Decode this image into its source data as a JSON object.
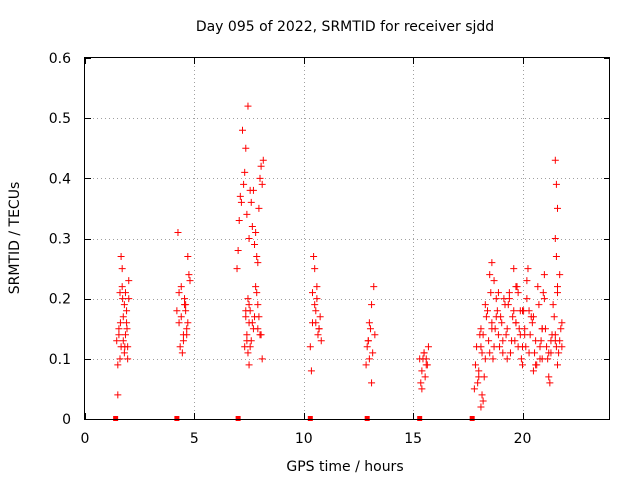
{
  "chart_data": {
    "type": "scatter",
    "title": "Day 095 of 2022, SRMTID for receiver sjdd",
    "xlabel": "GPS time / hours",
    "ylabel": "SRMTID / TECUs",
    "xlim": [
      0,
      24
    ],
    "ylim": [
      0,
      0.6
    ],
    "xticks": [
      0,
      5,
      10,
      15,
      20
    ],
    "xtick_labels": [
      "0",
      "5",
      "10",
      "15",
      "20"
    ],
    "yticks": [
      0,
      0.1,
      0.2,
      0.3,
      0.4,
      0.5,
      0.6
    ],
    "ytick_labels": [
      "0",
      "0.1",
      "0.2",
      "0.3",
      "0.4",
      "0.5",
      "0.6"
    ],
    "grid": true,
    "marker": "plus",
    "color": "#ff0000",
    "zero_markers_x": [
      1.4,
      4.2,
      7.0,
      10.3,
      12.9,
      15.3,
      17.7
    ],
    "series": [
      {
        "name": "SRMTID",
        "x": [
          1.45,
          1.5,
          1.55,
          1.6,
          1.65,
          1.7,
          1.75,
          1.8,
          1.85,
          1.9,
          1.95,
          2.0,
          1.5,
          1.6,
          1.7,
          1.8,
          1.9,
          2.0,
          1.55,
          1.65,
          1.75,
          1.85,
          1.95,
          1.62,
          1.72,
          1.82,
          1.92,
          4.2,
          4.3,
          4.4,
          4.5,
          4.6,
          4.7,
          4.8,
          4.35,
          4.45,
          4.55,
          4.65,
          4.75,
          4.25,
          4.5,
          4.7,
          4.6,
          4.4,
          4.3,
          4.55,
          4.65,
          6.95,
          7.05,
          7.15,
          7.25,
          7.35,
          7.45,
          7.55,
          7.65,
          7.75,
          7.85,
          7.95,
          8.05,
          8.15,
          7.0,
          7.1,
          7.2,
          7.3,
          7.4,
          7.5,
          7.6,
          7.7,
          7.8,
          7.9,
          8.0,
          8.1,
          7.35,
          7.4,
          7.45,
          7.5,
          7.3,
          7.55,
          7.7,
          7.8,
          7.6,
          7.9,
          7.95,
          8.0,
          7.45,
          7.5,
          7.65,
          7.85,
          7.9,
          7.35,
          7.4,
          7.5,
          7.55,
          7.75,
          8.05,
          8.1,
          10.3,
          10.4,
          10.5,
          10.6,
          10.7,
          10.8,
          10.45,
          10.55,
          10.65,
          10.35,
          10.5,
          10.6,
          10.75,
          10.4,
          10.55,
          10.7,
          12.85,
          12.95,
          13.05,
          13.15,
          13.25,
          12.9,
          13.0,
          13.1,
          13.2,
          13.0,
          13.1,
          12.95,
          15.3,
          15.4,
          15.5,
          15.6,
          15.7,
          15.35,
          15.45,
          15.55,
          15.65,
          15.5,
          15.4,
          15.6,
          17.8,
          17.9,
          18.0,
          18.1,
          18.2,
          18.3,
          18.4,
          18.5,
          18.6,
          18.7,
          18.8,
          18.9,
          19.0,
          19.1,
          19.2,
          19.3,
          19.4,
          19.5,
          19.6,
          19.7,
          19.8,
          19.9,
          20.0,
          20.1,
          20.2,
          20.3,
          20.4,
          20.5,
          20.6,
          20.7,
          20.8,
          20.9,
          21.0,
          21.1,
          21.2,
          21.3,
          21.4,
          21.5,
          21.6,
          21.7,
          21.8,
          17.85,
          17.95,
          18.05,
          18.15,
          18.25,
          18.35,
          18.45,
          18.55,
          18.65,
          18.75,
          18.85,
          18.95,
          19.05,
          19.15,
          19.25,
          19.35,
          19.45,
          19.55,
          19.65,
          19.75,
          19.85,
          19.95,
          20.05,
          20.15,
          20.25,
          20.35,
          20.45,
          20.55,
          20.65,
          20.75,
          20.85,
          20.95,
          21.05,
          21.15,
          21.25,
          21.35,
          21.45,
          21.55,
          21.65,
          21.75,
          18.1,
          18.3,
          18.6,
          18.9,
          19.3,
          19.6,
          19.9,
          20.2,
          20.5,
          20.8,
          21.0,
          21.3,
          21.6,
          21.7,
          18.0,
          18.2,
          18.5,
          18.8,
          19.1,
          19.4,
          19.7,
          20.0,
          20.3,
          20.6,
          20.9,
          21.2,
          21.5,
          21.8,
          18.6,
          18.7,
          19.8,
          20.0,
          20.1,
          21.5,
          21.55,
          21.6,
          21.5,
          21.55,
          21.6,
          20.9,
          19.7,
          18.1,
          18.15
        ],
        "y": [
          0.13,
          0.09,
          0.15,
          0.21,
          0.12,
          0.22,
          0.17,
          0.19,
          0.14,
          0.16,
          0.12,
          0.2,
          0.04,
          0.1,
          0.25,
          0.11,
          0.18,
          0.23,
          0.14,
          0.27,
          0.13,
          0.21,
          0.1,
          0.16,
          0.2,
          0.12,
          0.15,
          0.18,
          0.21,
          0.17,
          0.14,
          0.19,
          0.16,
          0.23,
          0.12,
          0.11,
          0.2,
          0.15,
          0.24,
          0.31,
          0.13,
          0.27,
          0.18,
          0.22,
          0.16,
          0.19,
          0.14,
          0.25,
          0.33,
          0.36,
          0.39,
          0.45,
          0.52,
          0.38,
          0.32,
          0.29,
          0.27,
          0.35,
          0.42,
          0.43,
          0.28,
          0.37,
          0.48,
          0.41,
          0.34,
          0.3,
          0.36,
          0.38,
          0.31,
          0.26,
          0.4,
          0.39,
          0.17,
          0.14,
          0.2,
          0.16,
          0.12,
          0.18,
          0.15,
          0.22,
          0.13,
          0.19,
          0.17,
          0.14,
          0.11,
          0.09,
          0.16,
          0.21,
          0.15,
          0.18,
          0.13,
          0.19,
          0.12,
          0.17,
          0.14,
          0.1,
          0.12,
          0.16,
          0.19,
          0.22,
          0.15,
          0.13,
          0.27,
          0.18,
          0.14,
          0.08,
          0.25,
          0.2,
          0.17,
          0.21,
          0.16,
          0.15,
          0.09,
          0.13,
          0.15,
          0.11,
          0.14,
          0.12,
          0.16,
          0.19,
          0.22,
          0.1,
          0.06,
          0.13,
          0.1,
          0.08,
          0.11,
          0.09,
          0.12,
          0.06,
          0.1,
          0.07,
          0.09,
          0.11,
          0.05,
          0.1,
          0.05,
          0.12,
          0.08,
          0.15,
          0.03,
          0.1,
          0.18,
          0.24,
          0.16,
          0.12,
          0.2,
          0.14,
          0.17,
          0.11,
          0.19,
          0.15,
          0.21,
          0.13,
          0.25,
          0.16,
          0.12,
          0.18,
          0.09,
          0.14,
          0.2,
          0.11,
          0.17,
          0.08,
          0.13,
          0.22,
          0.1,
          0.15,
          0.24,
          0.12,
          0.07,
          0.11,
          0.19,
          0.14,
          0.09,
          0.13,
          0.16,
          0.09,
          0.06,
          0.14,
          0.11,
          0.07,
          0.17,
          0.13,
          0.21,
          0.1,
          0.15,
          0.18,
          0.12,
          0.16,
          0.2,
          0.14,
          0.19,
          0.11,
          0.17,
          0.13,
          0.22,
          0.15,
          0.1,
          0.18,
          0.12,
          0.25,
          0.14,
          0.16,
          0.11,
          0.09,
          0.19,
          0.13,
          0.21,
          0.15,
          0.1,
          0.06,
          0.14,
          0.17,
          0.12,
          0.11,
          0.15,
          0.12,
          0.19,
          0.15,
          0.21,
          0.1,
          0.18,
          0.14,
          0.23,
          0.17,
          0.12,
          0.2,
          0.13,
          0.21,
          0.24,
          0.07,
          0.14,
          0.11,
          0.17,
          0.13,
          0.2,
          0.16,
          0.12,
          0.18,
          0.09,
          0.15,
          0.11,
          0.13,
          0.12,
          0.26,
          0.23,
          0.21,
          0.18,
          0.15,
          0.43,
          0.39,
          0.35,
          0.3,
          0.27,
          0.22,
          0.1,
          0.22,
          0.02,
          0.04
        ]
      }
    ]
  }
}
